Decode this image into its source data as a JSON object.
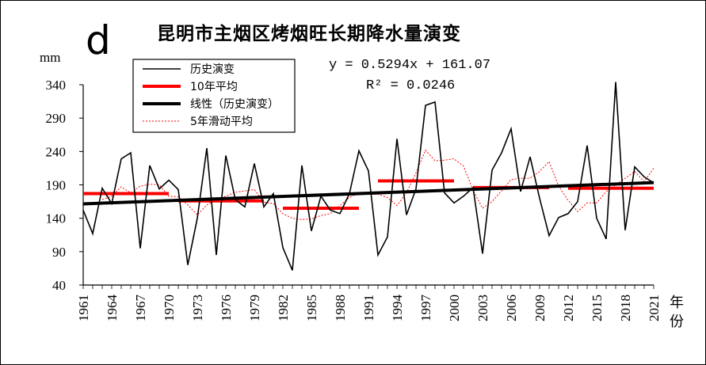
{
  "chart_data": {
    "type": "line",
    "panel_label": "d",
    "title": "昆明市主烟区烤烟旺长期降水量演变",
    "ylabel": "mm",
    "xlabel": "年份",
    "ylim": [
      40,
      340
    ],
    "yticks": [
      40,
      90,
      140,
      190,
      240,
      290,
      340
    ],
    "xlim": [
      1961,
      2021
    ],
    "xticks": [
      1961,
      1964,
      1967,
      1970,
      1973,
      1976,
      1979,
      1982,
      1985,
      1988,
      1991,
      1994,
      1997,
      2000,
      2003,
      2006,
      2009,
      2012,
      2015,
      2018,
      2021
    ],
    "legend": {
      "position": "top-left",
      "entries": [
        "历史演变",
        "10年平均",
        "线性（历史演变）",
        "5年滑动平均"
      ]
    },
    "equation": "y = 0.5294x + 161.07",
    "r2_label": "R² = 0.0246",
    "trend": {
      "slope": 0.5294,
      "intercept": 161.07
    },
    "series": [
      {
        "name": "历史演变",
        "color": "#000000",
        "x": [
          1961,
          1962,
          1963,
          1964,
          1965,
          1966,
          1967,
          1968,
          1969,
          1970,
          1971,
          1972,
          1973,
          1974,
          1975,
          1976,
          1977,
          1978,
          1979,
          1980,
          1981,
          1982,
          1983,
          1984,
          1985,
          1986,
          1987,
          1988,
          1989,
          1990,
          1991,
          1992,
          1993,
          1994,
          1995,
          1996,
          1997,
          1998,
          1999,
          2000,
          2001,
          2002,
          2003,
          2004,
          2005,
          2006,
          2007,
          2008,
          2009,
          2010,
          2011,
          2012,
          2013,
          2014,
          2015,
          2016,
          2017,
          2018,
          2019,
          2020,
          2021
        ],
        "values": [
          152,
          117,
          185,
          162,
          229,
          238,
          95,
          219,
          184,
          197,
          183,
          70,
          140,
          245,
          85,
          234,
          168,
          157,
          222,
          157,
          177,
          96,
          62,
          219,
          121,
          173,
          152,
          147,
          177,
          241,
          211,
          85,
          112,
          259,
          145,
          184,
          309,
          314,
          178,
          163,
          173,
          186,
          87,
          212,
          238,
          274,
          180,
          232,
          170,
          114,
          141,
          147,
          165,
          249,
          140,
          109,
          344,
          122,
          217,
          202,
          193
        ]
      },
      {
        "name": "10年平均",
        "color": "#ff0000",
        "segments": [
          {
            "x0": 1961,
            "x1": 1970,
            "value": 177
          },
          {
            "x0": 1971,
            "x1": 1980,
            "value": 166
          },
          {
            "x0": 1982,
            "x1": 1990,
            "value": 155
          },
          {
            "x0": 1992,
            "x1": 2000,
            "value": 196
          },
          {
            "x0": 2002,
            "x1": 2010,
            "value": 186
          },
          {
            "x0": 2012,
            "x1": 2021,
            "value": 185
          }
        ]
      },
      {
        "name": "5年滑动平均",
        "color": "#ff0000",
        "x": [
          1963,
          1964,
          1965,
          1966,
          1967,
          1968,
          1969,
          1970,
          1971,
          1972,
          1973,
          1974,
          1975,
          1976,
          1977,
          1978,
          1979,
          1980,
          1981,
          1982,
          1983,
          1984,
          1985,
          1986,
          1987,
          1988,
          1989,
          1990,
          1991,
          1992,
          1993,
          1994,
          1995,
          1996,
          1997,
          1998,
          1999,
          2000,
          2001,
          2002,
          2003,
          2004,
          2005,
          2006,
          2007,
          2008,
          2009,
          2010,
          2011,
          2012,
          2013,
          2014,
          2015,
          2016,
          2017,
          2018,
          2019,
          2020,
          2021
        ],
        "values": [
          168,
          173,
          187,
          178,
          188,
          191,
          190,
          173,
          172,
          160,
          145,
          160,
          168,
          173,
          179,
          181,
          183,
          164,
          162,
          147,
          140,
          138,
          139,
          144,
          147,
          159,
          171,
          178,
          176,
          176,
          171,
          159,
          178,
          208,
          242,
          226,
          227,
          229,
          218,
          182,
          155,
          165,
          181,
          198,
          200,
          200,
          210,
          225,
          188,
          167,
          150,
          163,
          163,
          180,
          190,
          200,
          210,
          195,
          215
        ]
      },
      {
        "name": "线性（历史演变）",
        "color": "#000000",
        "x": [
          1961,
          2021
        ],
        "values": [
          161.6,
          193.4
        ]
      }
    ]
  }
}
